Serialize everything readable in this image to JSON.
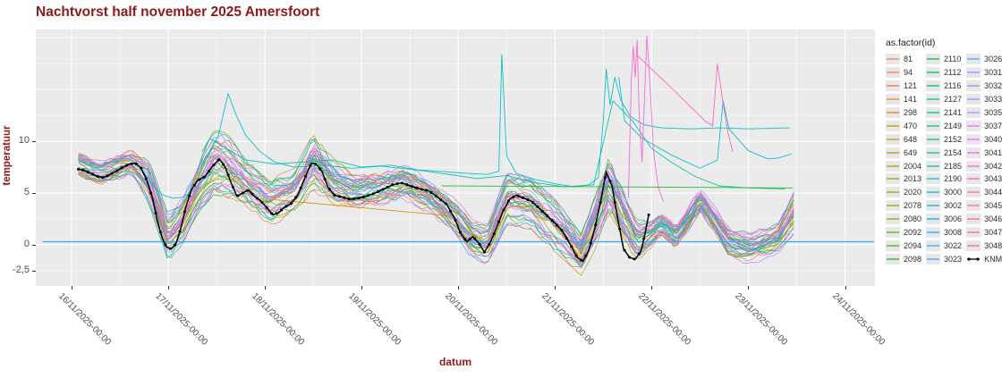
{
  "title": {
    "text": "Nachtvorst half november 2025 Amersfoort"
  },
  "axes": {
    "x": {
      "label": "datum",
      "ticks": [
        {
          "label": "16/11/2025-00:00",
          "day": 0
        },
        {
          "label": "17/11/2025-00:00",
          "day": 1
        },
        {
          "label": "18/11/2025-00:00",
          "day": 2
        },
        {
          "label": "19/11/2025-00:00",
          "day": 3
        },
        {
          "label": "20/11/2025-00:00",
          "day": 4
        },
        {
          "label": "21/11/2025-00:00",
          "day": 5
        },
        {
          "label": "22/11/2025-00:00",
          "day": 6
        },
        {
          "label": "23/11/2025-00:00",
          "day": 7
        },
        {
          "label": "24/11/2025-00:00",
          "day": 8
        }
      ]
    },
    "y": {
      "label": "temperatuur",
      "ticks": [
        {
          "label": "10",
          "value": 10
        },
        {
          "label": "5",
          "value": 5
        },
        {
          "label": "0",
          "value": 0
        },
        {
          "label": "-2,5",
          "value": -2.5
        }
      ]
    }
  },
  "legend": {
    "title": "as.factor(id)",
    "entries": [
      "81",
      "94",
      "121",
      "141",
      "298",
      "470",
      "648",
      "649",
      "2004",
      "2013",
      "2020",
      "2078",
      "2080",
      "2092",
      "2094",
      "2098",
      "2110",
      "2112",
      "2116",
      "2127",
      "2141",
      "2149",
      "2152",
      "2154",
      "2185",
      "2190",
      "3000",
      "3002",
      "3006",
      "3008",
      "3022",
      "3023",
      "3026",
      "3031",
      "3032",
      "3033",
      "3035",
      "3037",
      "3040",
      "3041",
      "3042",
      "3043",
      "3044",
      "3045",
      "3046",
      "3047",
      "3048",
      "KNMI"
    ],
    "columns": 3,
    "rows_per_column": 16
  },
  "colors": {
    "title": "#8B1A1A",
    "axis_label": "#8B1A1A",
    "tick_text": "#4d4d4d",
    "panel_bg": "#EBEBEB",
    "grid": "#FFFFFF",
    "knmi": "#000000",
    "legend_key_bg": "#E7E7E7",
    "hue_anchors": [
      "#F8766D",
      "#DE8C00",
      "#B79F00",
      "#7CAE00",
      "#00BA38",
      "#00C08B",
      "#00BFC4",
      "#00B4F0",
      "#619CFF",
      "#C77CFF",
      "#F564E3",
      "#FF64B0",
      "#F8766D"
    ]
  },
  "chart_data": {
    "type": "line",
    "title": "Nachtvorst half november 2025 Amersfoort",
    "xlabel": "datum",
    "ylabel": "temperatuur",
    "x_unit": "days since 16/11/2025-00:00",
    "x_domain": [
      -0.37,
      8.31
    ],
    "y_domain": [
      -3.97,
      20.8
    ],
    "y_gridline_step": 2.5,
    "series_ids": [
      "81",
      "94",
      "121",
      "141",
      "298",
      "470",
      "648",
      "649",
      "2004",
      "2013",
      "2020",
      "2078",
      "2080",
      "2092",
      "2094",
      "2098",
      "2110",
      "2112",
      "2116",
      "2127",
      "2141",
      "2149",
      "2152",
      "2154",
      "2185",
      "2190",
      "3000",
      "3002",
      "3006",
      "3008",
      "3022",
      "3023",
      "3026",
      "3031",
      "3032",
      "3033",
      "3035",
      "3037",
      "3040",
      "3041",
      "3042",
      "3043",
      "3044",
      "3045",
      "3046",
      "3047",
      "3048"
    ],
    "knmi": {
      "name": "KNMI",
      "points": [
        [
          0.07,
          7.3
        ],
        [
          0.13,
          7.2
        ],
        [
          0.2,
          6.9
        ],
        [
          0.27,
          6.6
        ],
        [
          0.33,
          6.5
        ],
        [
          0.4,
          6.8
        ],
        [
          0.46,
          7.1
        ],
        [
          0.53,
          7.5
        ],
        [
          0.6,
          7.8
        ],
        [
          0.66,
          7.9
        ],
        [
          0.72,
          7.4
        ],
        [
          0.78,
          6.2
        ],
        [
          0.84,
          4.4
        ],
        [
          0.89,
          2.2
        ],
        [
          0.94,
          0.6
        ],
        [
          0.98,
          -0.2
        ],
        [
          1.03,
          -0.4
        ],
        [
          1.08,
          0.1
        ],
        [
          1.13,
          1.6
        ],
        [
          1.18,
          3.6
        ],
        [
          1.24,
          5.3
        ],
        [
          1.3,
          6.2
        ],
        [
          1.38,
          6.6
        ],
        [
          1.46,
          7.6
        ],
        [
          1.53,
          8.3
        ],
        [
          1.59,
          7.5
        ],
        [
          1.65,
          6.0
        ],
        [
          1.71,
          4.7
        ],
        [
          1.77,
          5.0
        ],
        [
          1.83,
          5.3
        ],
        [
          1.89,
          4.7
        ],
        [
          1.95,
          4.3
        ],
        [
          2.02,
          3.6
        ],
        [
          2.08,
          2.9
        ],
        [
          2.14,
          3.1
        ],
        [
          2.2,
          3.6
        ],
        [
          2.27,
          4.0
        ],
        [
          2.34,
          4.8
        ],
        [
          2.41,
          6.4
        ],
        [
          2.48,
          7.9
        ],
        [
          2.53,
          7.8
        ],
        [
          2.59,
          7.1
        ],
        [
          2.65,
          5.6
        ],
        [
          2.72,
          4.8
        ],
        [
          2.8,
          4.6
        ],
        [
          2.88,
          4.4
        ],
        [
          2.96,
          4.5
        ],
        [
          3.05,
          4.7
        ],
        [
          3.14,
          5.0
        ],
        [
          3.23,
          5.4
        ],
        [
          3.32,
          5.8
        ],
        [
          3.41,
          6.0
        ],
        [
          3.5,
          5.7
        ],
        [
          3.6,
          5.4
        ],
        [
          3.7,
          5.2
        ],
        [
          3.8,
          4.5
        ],
        [
          3.88,
          3.9
        ],
        [
          3.96,
          2.6
        ],
        [
          4.03,
          1.0
        ],
        [
          4.09,
          0.3
        ],
        [
          4.15,
          0.8
        ],
        [
          4.21,
          0.2
        ],
        [
          4.27,
          -0.7
        ],
        [
          4.33,
          0.2
        ],
        [
          4.39,
          1.5
        ],
        [
          4.46,
          3.2
        ],
        [
          4.53,
          4.4
        ],
        [
          4.6,
          4.8
        ],
        [
          4.68,
          4.5
        ],
        [
          4.76,
          4.2
        ],
        [
          4.84,
          3.5
        ],
        [
          4.92,
          2.8
        ],
        [
          5.0,
          2.1
        ],
        [
          5.08,
          1.3
        ],
        [
          5.16,
          0.0
        ],
        [
          5.23,
          -1.2
        ],
        [
          5.29,
          -1.6
        ],
        [
          5.35,
          -0.5
        ],
        [
          5.41,
          1.5
        ],
        [
          5.47,
          4.1
        ],
        [
          5.53,
          7.0
        ],
        [
          5.59,
          5.7
        ],
        [
          5.65,
          2.5
        ],
        [
          5.71,
          -0.4
        ],
        [
          5.77,
          -1.2
        ],
        [
          5.83,
          -1.4
        ],
        [
          5.89,
          -0.6
        ],
        [
          5.93,
          1.0
        ],
        [
          5.97,
          2.9
        ]
      ]
    },
    "ensemble_envelope": [
      [
        0.07,
        6.3,
        9.3
      ],
      [
        0.3,
        5.7,
        8.2
      ],
      [
        0.62,
        6.8,
        9.1
      ],
      [
        0.8,
        4.2,
        7.9
      ],
      [
        1.0,
        -1.2,
        2.6
      ],
      [
        1.15,
        0.3,
        4.4
      ],
      [
        1.32,
        3.6,
        7.8
      ],
      [
        1.48,
        5.2,
        10.9
      ],
      [
        1.62,
        4.9,
        10.3
      ],
      [
        1.8,
        4.1,
        7.9
      ],
      [
        2.05,
        2.2,
        6.1
      ],
      [
        2.3,
        3.1,
        7.0
      ],
      [
        2.5,
        5.6,
        10.4
      ],
      [
        2.7,
        3.9,
        8.1
      ],
      [
        2.9,
        3.2,
        6.8
      ],
      [
        3.2,
        3.6,
        7.2
      ],
      [
        3.45,
        4.2,
        7.7
      ],
      [
        3.7,
        3.2,
        6.3
      ],
      [
        3.95,
        1.0,
        4.5
      ],
      [
        4.15,
        -1.0,
        2.1
      ],
      [
        4.3,
        -1.7,
        1.5
      ],
      [
        4.5,
        2.3,
        6.6
      ],
      [
        4.75,
        1.8,
        6.1
      ],
      [
        5.0,
        -0.3,
        4.1
      ],
      [
        5.27,
        -2.6,
        0.7
      ],
      [
        5.45,
        0.4,
        5.4
      ],
      [
        5.56,
        2.7,
        8.3
      ],
      [
        5.85,
        -1.8,
        2.2
      ],
      [
        6.0,
        -0.3,
        2.4
      ],
      [
        6.1,
        0.8,
        3.2
      ],
      [
        6.25,
        -0.5,
        2.0
      ],
      [
        6.4,
        1.5,
        4.2
      ],
      [
        6.5,
        3.0,
        5.6
      ],
      [
        6.62,
        1.4,
        4.2
      ],
      [
        6.8,
        -1.2,
        1.6
      ],
      [
        7.0,
        -1.6,
        1.0
      ],
      [
        7.15,
        -1.2,
        1.4
      ],
      [
        7.3,
        -0.6,
        1.8
      ],
      [
        7.47,
        1.4,
        5.0
      ]
    ],
    "outlier_series": [
      {
        "id": "2185",
        "points": [
          [
            1.32,
            7.6
          ],
          [
            1.42,
            8.8
          ],
          [
            1.52,
            10.6
          ],
          [
            1.62,
            14.6
          ],
          [
            1.7,
            12.6
          ],
          [
            1.8,
            10.6
          ],
          [
            1.95,
            9.0
          ],
          [
            2.1,
            8.0
          ],
          [
            2.3,
            7.5
          ],
          [
            2.6,
            7.7
          ],
          [
            2.9,
            7.4
          ],
          [
            3.2,
            7.6
          ],
          [
            3.5,
            7.3
          ],
          [
            3.8,
            7.1
          ],
          [
            4.1,
            6.9
          ],
          [
            4.3,
            6.8
          ],
          [
            4.42,
            7.1
          ],
          [
            4.45,
            18.4
          ],
          [
            4.5,
            8.6
          ],
          [
            4.6,
            6.9
          ],
          [
            4.8,
            6.3
          ],
          [
            5.0,
            5.9
          ],
          [
            5.2,
            5.6
          ],
          [
            5.35,
            5.8
          ],
          [
            5.45,
            6.5
          ],
          [
            5.5,
            12.0
          ],
          [
            5.53,
            17.0
          ],
          [
            5.57,
            13.5
          ],
          [
            5.62,
            16.2
          ],
          [
            5.68,
            14.0
          ],
          [
            5.78,
            12.4
          ],
          [
            5.92,
            11.6
          ],
          [
            6.1,
            11.3
          ],
          [
            6.4,
            11.2
          ],
          [
            6.7,
            11.3
          ],
          [
            7.0,
            11.2
          ],
          [
            7.43,
            11.3
          ]
        ]
      },
      {
        "id": "2152",
        "points": [
          [
            1.35,
            9.0
          ],
          [
            1.43,
            10.3
          ],
          [
            1.55,
            9.6
          ],
          [
            1.8,
            8.2
          ],
          [
            2.1,
            7.8
          ],
          [
            2.4,
            8.0
          ],
          [
            2.7,
            8.2
          ],
          [
            3.0,
            7.5
          ],
          [
            3.3,
            7.7
          ],
          [
            3.6,
            7.2
          ],
          [
            3.9,
            6.8
          ],
          [
            4.2,
            6.4
          ],
          [
            4.5,
            6.7
          ],
          [
            4.8,
            6.0
          ],
          [
            5.1,
            5.6
          ],
          [
            5.4,
            5.8
          ],
          [
            5.6,
            13.9
          ],
          [
            5.8,
            12.0
          ],
          [
            6.0,
            9.3
          ],
          [
            6.2,
            8.0
          ],
          [
            6.45,
            6.6
          ],
          [
            6.7,
            5.7
          ],
          [
            7.0,
            5.5
          ],
          [
            7.38,
            5.4
          ]
        ]
      },
      {
        "id": "2190",
        "points": [
          [
            5.66,
            16.2
          ],
          [
            5.72,
            12.0
          ],
          [
            5.9,
            10.3
          ],
          [
            6.2,
            8.7
          ],
          [
            6.5,
            7.4
          ],
          [
            6.68,
            8.2
          ],
          [
            6.74,
            13.9
          ],
          [
            6.8,
            11.2
          ],
          [
            7.0,
            9.1
          ],
          [
            7.2,
            8.3
          ],
          [
            7.32,
            8.4
          ],
          [
            7.45,
            8.8
          ]
        ]
      },
      {
        "id": "3000",
        "points": [
          [
            0.75,
            7.0
          ],
          [
            0.85,
            5.6
          ],
          [
            0.95,
            4.8
          ],
          [
            1.05,
            4.5
          ],
          [
            1.15,
            4.6
          ],
          [
            1.25,
            5.2
          ],
          [
            1.35,
            6.2
          ],
          [
            1.45,
            7.0
          ]
        ]
      },
      {
        "id": "3043",
        "points": [
          [
            5.76,
            4.5
          ],
          [
            5.79,
            16.0
          ],
          [
            5.81,
            19.2
          ],
          [
            5.83,
            16.2
          ],
          [
            5.85,
            19.8
          ],
          [
            5.87,
            13.0
          ],
          [
            5.9,
            8.0
          ],
          [
            5.93,
            15.0
          ],
          [
            5.95,
            20.2
          ],
          [
            5.98,
            16.0
          ],
          [
            6.02,
            9.0
          ],
          [
            6.07,
            5.5
          ],
          [
            6.12,
            4.2
          ]
        ]
      },
      {
        "id": "3045",
        "points": [
          [
            5.85,
            18.3
          ],
          [
            6.2,
            15.2
          ],
          [
            6.55,
            12.0
          ],
          [
            6.63,
            11.5
          ],
          [
            6.68,
            17.5
          ],
          [
            6.73,
            14.2
          ],
          [
            6.79,
            10.8
          ],
          [
            6.84,
            9.0
          ]
        ]
      },
      {
        "id": "2098",
        "points": [
          [
            3.83,
            5.7
          ],
          [
            5.6,
            5.6
          ],
          [
            7.46,
            5.5
          ]
        ]
      },
      {
        "id": "470",
        "points": [
          [
            2.05,
            4.4
          ],
          [
            3.92,
            2.8
          ]
        ]
      },
      {
        "id": "3022",
        "points": [
          [
            -0.3,
            0.3
          ],
          [
            8.3,
            0.3
          ]
        ]
      }
    ],
    "ensemble_x_range": [
      0.07,
      7.47
    ],
    "legend_position": "right"
  }
}
